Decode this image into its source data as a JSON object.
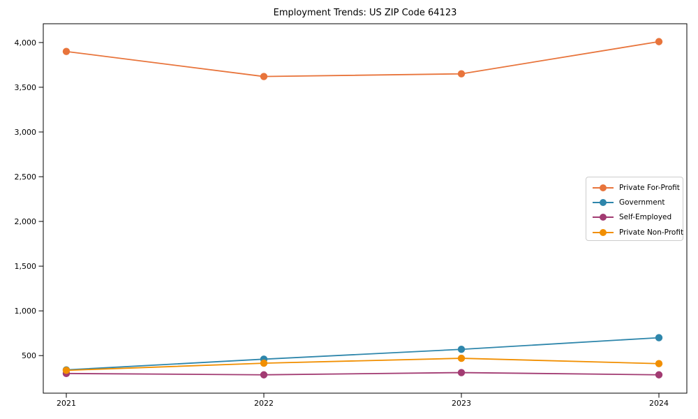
{
  "colors": {
    "background": "#ffffff",
    "axes": "#000000",
    "tick_label": "#000000",
    "legend_border": "#cccccc"
  },
  "chart_data": {
    "type": "line",
    "title": "Employment Trends: US ZIP Code 64123",
    "x": [
      "2021",
      "2022",
      "2023",
      "2024"
    ],
    "series": [
      {
        "name": "Private For-Profit",
        "color": "#E8743B",
        "values": [
          3900,
          3620,
          3650,
          4010
        ]
      },
      {
        "name": "Government",
        "color": "#2E86AB",
        "values": [
          340,
          460,
          570,
          700
        ]
      },
      {
        "name": "Self-Employed",
        "color": "#A23B72",
        "values": [
          300,
          285,
          310,
          285
        ]
      },
      {
        "name": "Private Non-Profit",
        "color": "#F18F01",
        "values": [
          335,
          415,
          470,
          410
        ]
      }
    ],
    "xlabel": "",
    "ylabel": "",
    "ylim": [
      80,
      4210
    ],
    "yticks": [
      500,
      1000,
      1500,
      2000,
      2500,
      3000,
      3500,
      4000
    ],
    "ytick_labels": [
      "500",
      "1,000",
      "1,500",
      "2,000",
      "2,500",
      "3,000",
      "3,500",
      "4,000"
    ],
    "xtick_labels": [
      "2021",
      "2022",
      "2023",
      "2024"
    ],
    "legend_position": "center right",
    "grid": false,
    "marker": "circle"
  }
}
